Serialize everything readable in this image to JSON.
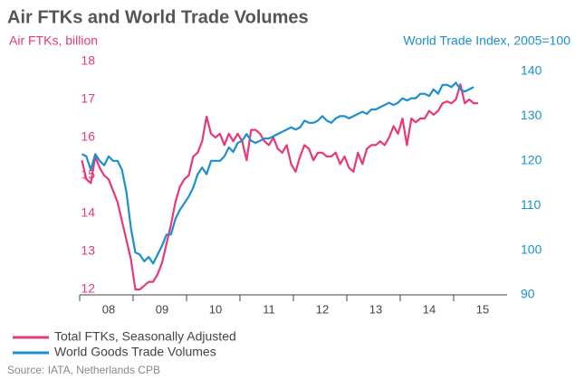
{
  "chart_data": {
    "type": "line",
    "title": "Air FTKs and World Trade Volumes",
    "y_label": "Air FTKs, billion",
    "y2_label": "World Trade Index, 2005=100",
    "source": "Source: IATA, Netherlands CPB",
    "categories": [
      null,
      null,
      null,
      null,
      null,
      null,
      "08",
      null,
      null,
      null,
      null,
      null,
      null,
      null,
      null,
      null,
      null,
      null,
      "09",
      null,
      null,
      null,
      null,
      null,
      null,
      null,
      null,
      null,
      null,
      null,
      "10",
      null,
      null,
      null,
      null,
      null,
      null,
      null,
      null,
      null,
      null,
      null,
      "11",
      null,
      null,
      null,
      null,
      null,
      null,
      null,
      null,
      null,
      null,
      null,
      "12",
      null,
      null,
      null,
      null,
      null,
      null,
      null,
      null,
      null,
      null,
      null,
      "13",
      null,
      null,
      null,
      null,
      null,
      null,
      null,
      null,
      null,
      null,
      null,
      "14",
      null,
      null,
      null,
      null,
      null,
      null,
      null,
      null,
      null,
      null,
      null,
      "15",
      null,
      null,
      null,
      null,
      null
    ],
    "ylim": [
      12,
      18
    ],
    "yticks": [
      12,
      13,
      14,
      15,
      16,
      17,
      18
    ],
    "y2lim": [
      90,
      140
    ],
    "y2ticks": [
      90,
      100,
      110,
      120,
      130,
      140
    ],
    "series": [
      {
        "name": "Total FTKs, Seasonally Adjusted",
        "color": "#e8387a",
        "axis": "y",
        "values": [
          15.4,
          14.9,
          14.8,
          15.5,
          15.2,
          15.0,
          14.9,
          14.6,
          14.3,
          13.8,
          13.3,
          12.8,
          12.0,
          12.0,
          12.1,
          12.2,
          12.2,
          12.4,
          12.7,
          13.2,
          13.7,
          14.3,
          14.7,
          14.9,
          15.0,
          15.5,
          15.6,
          15.9,
          16.55,
          16.1,
          16.0,
          16.1,
          15.8,
          16.1,
          15.9,
          16.1,
          15.9,
          15.4,
          16.2,
          16.2,
          16.1,
          15.9,
          15.8,
          16.0,
          15.7,
          15.6,
          15.8,
          15.3,
          15.1,
          15.5,
          15.8,
          15.7,
          15.4,
          15.6,
          15.6,
          15.5,
          15.5,
          15.6,
          15.3,
          15.5,
          15.2,
          15.1,
          15.6,
          15.3,
          15.7,
          15.8,
          15.8,
          15.9,
          15.8,
          16.0,
          16.3,
          16.1,
          16.5,
          15.8,
          16.5,
          16.4,
          16.5,
          16.5,
          16.7,
          16.6,
          16.7,
          16.9,
          16.95,
          16.9,
          17.0,
          17.4,
          16.9,
          17.0,
          16.9,
          16.9,
          null,
          null,
          null,
          null,
          null,
          null
        ]
      },
      {
        "name": "World Goods Trade Volumes",
        "color": "#1b8fd0",
        "axis": "y2",
        "values": [
          121.5,
          121,
          118,
          121.5,
          120,
          119,
          121,
          120,
          120,
          118,
          113,
          105,
          99.5,
          99,
          97.5,
          98.5,
          97,
          99,
          101,
          103.5,
          103.5,
          107,
          109,
          110.5,
          112,
          114,
          117,
          118.5,
          117,
          120,
          120,
          120,
          121,
          123,
          122,
          124,
          124.5,
          126,
          124.5,
          124,
          124.5,
          125,
          125,
          125.5,
          126,
          126.5,
          127,
          127.5,
          127,
          127.5,
          129,
          128.5,
          128.5,
          129,
          130,
          129,
          128.5,
          129.5,
          130,
          130,
          129.5,
          130,
          130.5,
          131,
          130.5,
          131.5,
          131.5,
          132,
          132.5,
          133,
          132.5,
          133,
          134,
          133.5,
          134,
          134,
          135,
          135,
          134.5,
          136,
          135,
          137,
          137,
          136.5,
          137.5,
          136,
          135.5,
          136,
          136.5,
          null,
          null,
          null,
          null,
          null,
          null,
          null
        ]
      }
    ]
  }
}
